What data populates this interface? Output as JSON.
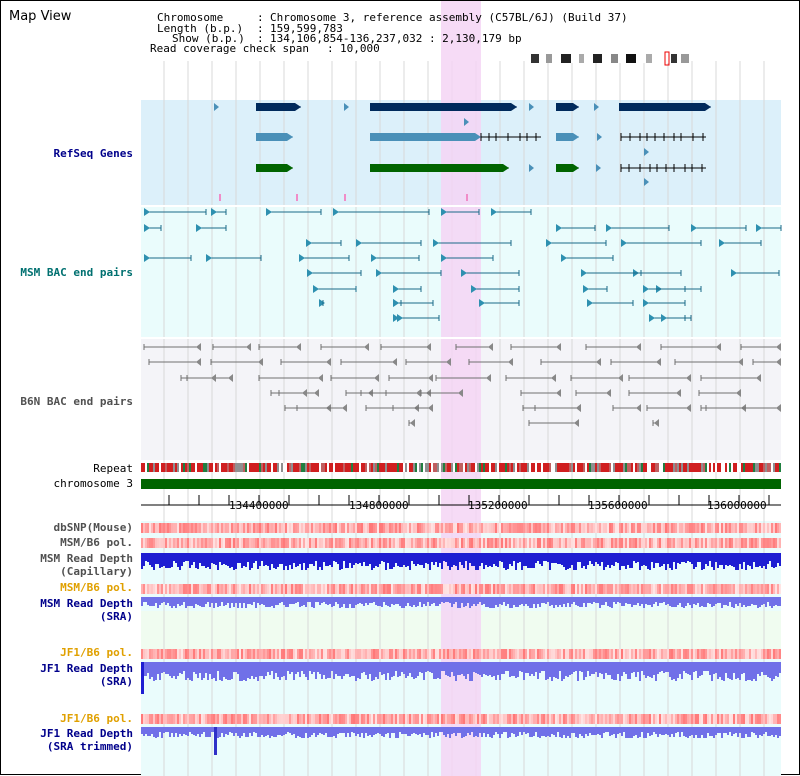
{
  "app": {
    "title": "Map View"
  },
  "header": {
    "chromosome_key": "Chromosome",
    "chromosome_val": "Chromosome 3, reference assembly (C57BL/6J) (Build 37)",
    "length_key": "Length (b.p.)",
    "length_val": "159,599,783",
    "show_key": "Show (b.p.)",
    "show_val": "134,106,854-136,237,032 : 2,130,179 bp",
    "span_key": "Read coverage check span",
    "span_val": "10,000"
  },
  "tracks": {
    "refseq": "RefSeq Genes",
    "msm_bac": "MSM BAC end pairs",
    "b6n_bac": "B6N BAC end pairs",
    "repeat": "Repeat",
    "chromosome": "chromosome 3",
    "dbsnp": "dbSNP(Mouse)",
    "msm_b6_pol_1": "MSM/B6 pol.",
    "msm_depth_cap_1": "MSM Read Depth",
    "msm_depth_cap_2": "(Capillary)",
    "msm_b6_pol_2": "MSM/B6 pol.",
    "msm_depth_sra_1": "MSM Read Depth",
    "msm_depth_sra_2": "(SRA)",
    "jf1_b6_pol_1": "JF1/B6 pol.",
    "jf1_depth_sra_1": "JF1 Read Depth",
    "jf1_depth_sra_2": "(SRA)",
    "jf1_b6_pol_2": "JF1/B6 pol.",
    "jf1_depth_trim_1": "JF1 Read Depth",
    "jf1_depth_trim_2": "(SRA trimmed)"
  },
  "ruler": {
    "ticks": [
      "134400000",
      "134800000",
      "135200000",
      "135600000",
      "136000000"
    ]
  },
  "colors": {
    "refseq_bg": "#dcf0fa",
    "bac_bg": "#eafcfc",
    "highlight": "#f5d5f5",
    "gene_dark": "#002a5c",
    "gene_mid": "#4a90b8",
    "gene_green": "#006400",
    "msm_label": "#007070",
    "b6n_label": "#505050",
    "navy_label": "#00008b",
    "orange_label": "#e0a000",
    "depth_blue": "#1e1ed2",
    "depth_light": "#7070e8"
  }
}
